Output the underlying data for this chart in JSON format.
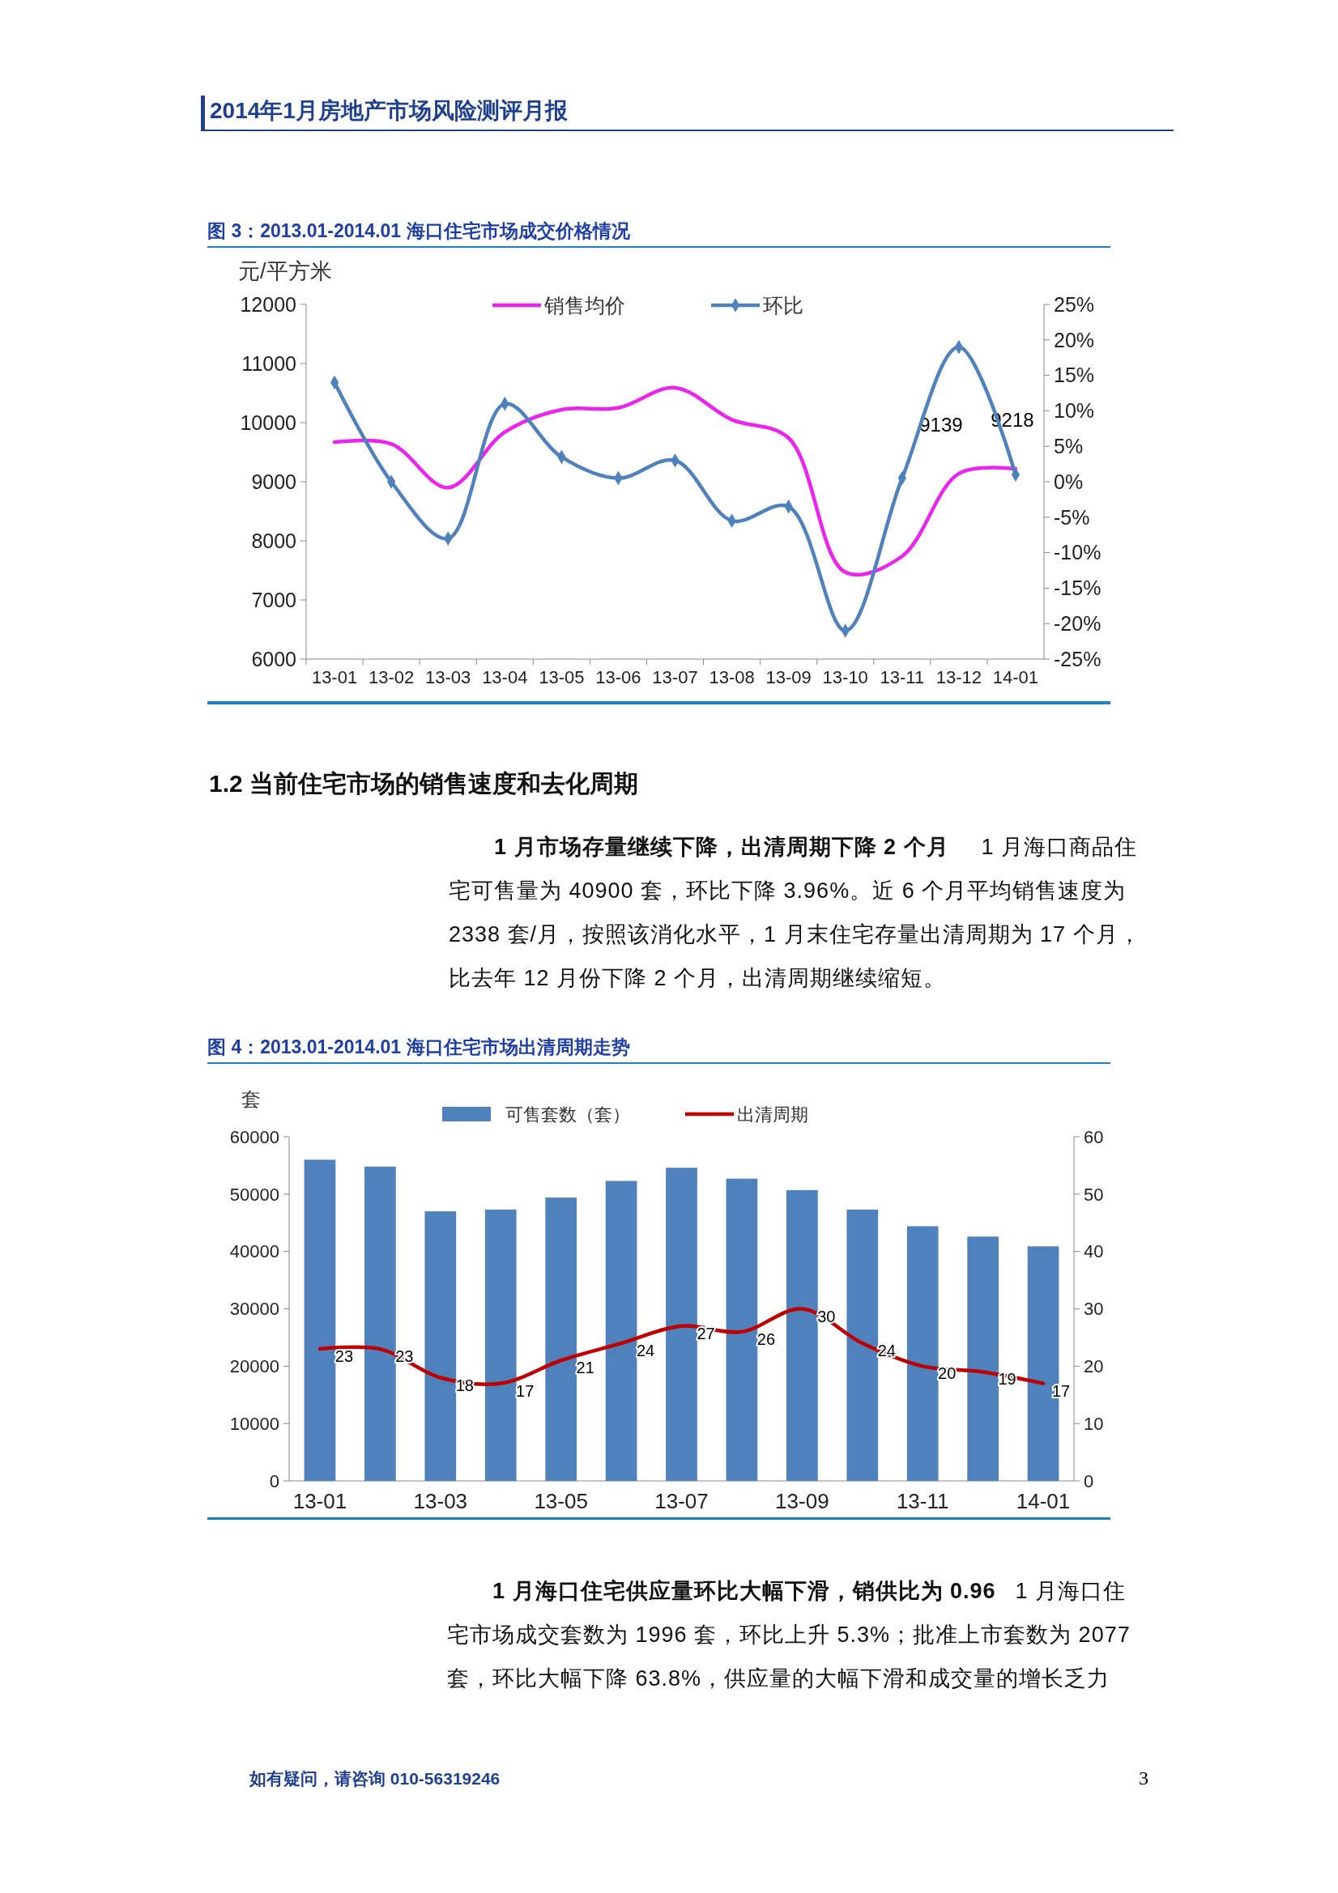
{
  "chart_data": [
    {
      "type": "other",
      "title": "2014年1月房地产市场风险测评月报"
    },
    {
      "type": "line",
      "title": "图 3：2013.01-2014.01 海口住宅市场成交价格情况",
      "ylabel": "元/平方米",
      "categories": [
        "13-01",
        "13-02",
        "13-03",
        "13-04",
        "13-05",
        "13-06",
        "13-07",
        "13-08",
        "13-09",
        "13-10",
        "13-11",
        "13-12",
        "14-01"
      ],
      "series": [
        {
          "name": "销售均价",
          "color": "#ee22ee",
          "marker": "none",
          "values": [
            9670,
            9640,
            8900,
            9840,
            10220,
            10250,
            10590,
            10050,
            9740,
            7470,
            7740,
            9139,
            9218
          ],
          "value_labels": [
            null,
            null,
            null,
            null,
            null,
            null,
            null,
            null,
            null,
            null,
            null,
            "9139",
            "9218"
          ]
        },
        {
          "name": "环比",
          "color": "#4f81bd",
          "marker": "diamond",
          "axis": "y2",
          "values": [
            14,
            0,
            -8,
            11,
            3.5,
            0.5,
            3,
            -5.5,
            -3.5,
            -21,
            0.5,
            19,
            1
          ]
        }
      ],
      "ylim": [
        6000,
        12000
      ],
      "yticks": [
        6000,
        7000,
        8000,
        9000,
        10000,
        11000,
        12000
      ],
      "y2lim": [
        -25,
        25
      ],
      "y2ticks": [
        {
          "value": -25,
          "label": "-25%"
        },
        {
          "value": -20,
          "label": "-20%"
        },
        {
          "value": -15,
          "label": "-15%"
        },
        {
          "value": -10,
          "label": "-10%"
        },
        {
          "value": -5,
          "label": "-5%"
        },
        {
          "value": 0,
          "label": "0%"
        },
        {
          "value": 5,
          "label": "5%"
        },
        {
          "value": 10,
          "label": "10%"
        },
        {
          "value": 15,
          "label": "15%"
        },
        {
          "value": 20,
          "label": "20%"
        },
        {
          "value": 25,
          "label": "25%"
        }
      ],
      "legend": "top",
      "grid": false
    },
    {
      "type": "other",
      "title": "1.2 当前住宅市场的销售速度和去化周期",
      "subtitle": "1 月市场存量继续下降，出清周期下降 2 个月",
      "annotations": [
        "1 月海口商品住宅可售量为 40900 套，环比下降 3.96%。近 6 个月平均销售速度为 2338 套/月，按照该消化水平，1 月末住宅存量出清周期为 17 个月，比去年 12 月份下降 2 个月，出清周期继续缩短。"
      ]
    },
    {
      "type": "bar",
      "title": "图 4：2013.01-2014.01 海口住宅市场出清周期走势",
      "ylabel": "套",
      "categories": [
        "13-01",
        null,
        "13-03",
        null,
        "13-05",
        null,
        "13-07",
        null,
        "13-09",
        null,
        "13-11",
        null,
        "14-01"
      ],
      "series": [
        {
          "name": "可售套数（套）",
          "color": "#4f81bd",
          "values": [
            56000,
            54800,
            47000,
            47300,
            49400,
            52300,
            54600,
            52700,
            50700,
            47300,
            44400,
            42600,
            40900
          ]
        },
        {
          "name": "出清周期",
          "type": "line",
          "color": "#c00000",
          "marker": "none",
          "axis": "y2",
          "values": [
            23,
            23,
            18,
            17,
            21,
            24,
            27,
            26,
            30,
            24,
            20,
            19,
            17
          ],
          "data_labels": true
        }
      ],
      "ylim": [
        0,
        60000
      ],
      "yticks": [
        0,
        10000,
        20000,
        30000,
        40000,
        50000,
        60000
      ],
      "y2lim": [
        0,
        60
      ],
      "y2ticks": [
        0,
        10,
        20,
        30,
        40,
        50,
        60
      ],
      "legend": "top",
      "grid": false
    },
    {
      "type": "other",
      "subtitle": "1 月海口住宅供应量环比大幅下滑，销供比为 0.96",
      "annotations": [
        "1 月海口住宅市场成交套数为 1996 套，环比上升 5.3%；批准上市套数为 2077 套，环比大幅下降 63.8%，供应量的大幅下滑和成交量的增长乏力",
        "如有疑问，请咨询 010-56319246",
        "3"
      ]
    }
  ]
}
